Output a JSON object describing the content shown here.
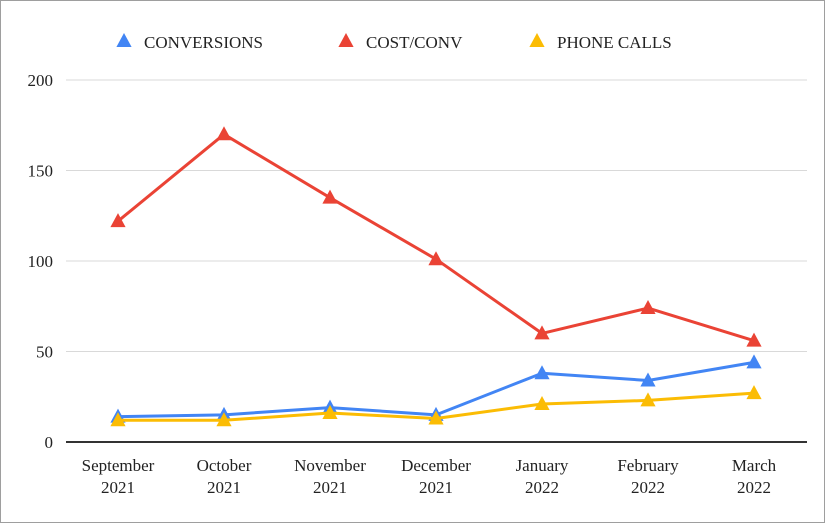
{
  "chart_data": {
    "type": "line",
    "title": "",
    "xlabel": "",
    "ylabel": "",
    "categories": [
      [
        "September",
        "2021"
      ],
      [
        "October",
        "2021"
      ],
      [
        "November",
        "2021"
      ],
      [
        "December",
        "2021"
      ],
      [
        "January",
        "2022"
      ],
      [
        "February",
        "2022"
      ],
      [
        "March",
        "2022"
      ]
    ],
    "ylim": [
      0,
      200
    ],
    "yticks": [
      0,
      50,
      100,
      150,
      200
    ],
    "grid": true,
    "legend_position": "top",
    "marker": "triangle",
    "series": [
      {
        "name": "CONVERSIONS",
        "color": "#4285f4",
        "values": [
          14,
          15,
          19,
          15,
          38,
          34,
          44
        ]
      },
      {
        "name": "COST/CONV",
        "color": "#ea4335",
        "values": [
          122,
          170,
          135,
          101,
          60,
          74,
          56
        ]
      },
      {
        "name": "PHONE CALLS",
        "color": "#fbbc04",
        "values": [
          12,
          12,
          16,
          13,
          21,
          23,
          27
        ]
      }
    ]
  }
}
